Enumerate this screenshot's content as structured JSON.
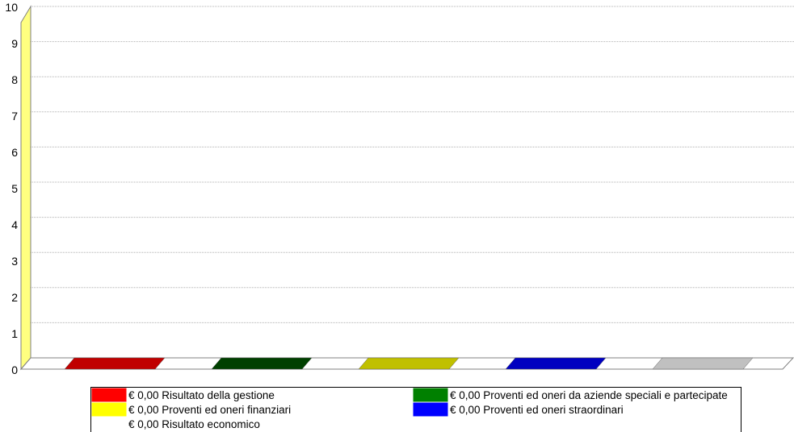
{
  "chart_data": {
    "type": "bar",
    "three_d": true,
    "ylim": [
      0,
      10
    ],
    "yticks": [
      "0",
      "1",
      "2",
      "3",
      "4",
      "5",
      "6",
      "7",
      "8",
      "9",
      "10"
    ],
    "grid": true,
    "legend_position": "bottom",
    "currency_symbol": "€",
    "series": [
      {
        "name": "Risultato della gestione",
        "value_label": "0,00",
        "value": 0,
        "color": "#ff0000",
        "top_color": "#c00000"
      },
      {
        "name": "Proventi ed oneri da aziende speciali e partecipate",
        "value_label": "0,00",
        "value": 0,
        "color": "#008000",
        "top_color": "#004000"
      },
      {
        "name": "Proventi ed oneri finanziari",
        "value_label": "0,00",
        "value": 0,
        "color": "#ffff00",
        "top_color": "#c0c000"
      },
      {
        "name": "Proventi ed oneri straordinari",
        "value_label": "0,00",
        "value": 0,
        "color": "#0000ff",
        "top_color": "#0000c0"
      },
      {
        "name": "Risultato economico",
        "value_label": "0,00",
        "value": 0,
        "color": "#ffffff",
        "top_color": "#c0c0c0"
      }
    ],
    "colors": {
      "wall": "#ffff80",
      "grid": "#b0b0b0",
      "axis": "#808080"
    }
  }
}
